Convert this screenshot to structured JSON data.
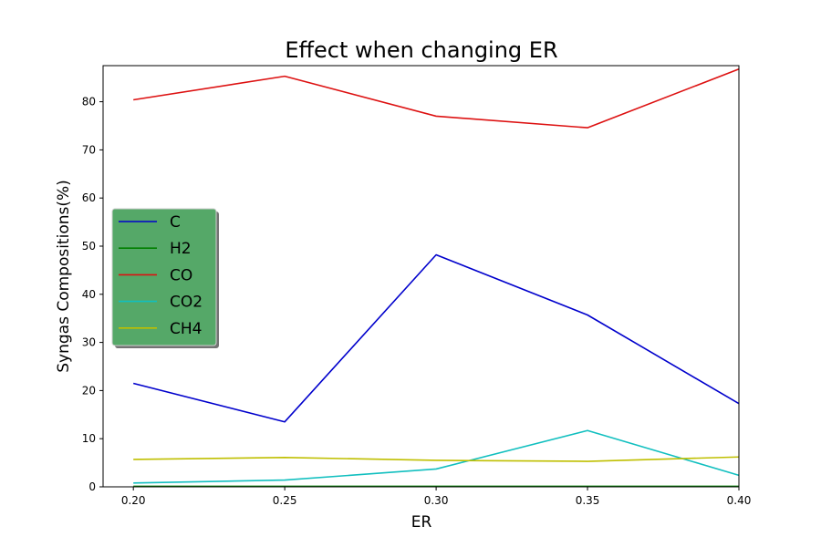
{
  "chart_data": {
    "type": "line",
    "title": "Effect when changing ER",
    "xlabel": "ER",
    "ylabel": "Syngas Compositions(%)",
    "x": [
      0.2,
      0.25,
      0.3,
      0.35,
      0.4
    ],
    "x_tick_labels": [
      "0.20",
      "0.25",
      "0.30",
      "0.35",
      "0.40"
    ],
    "xlim": [
      0.19,
      0.4
    ],
    "y_ticks": [
      0,
      10,
      20,
      30,
      40,
      50,
      60,
      70,
      80
    ],
    "y_tick_labels": [
      "0",
      "10",
      "20",
      "30",
      "40",
      "50",
      "60",
      "70",
      "80"
    ],
    "ylim": [
      0,
      87.5
    ],
    "grid": false,
    "legend_position": "center-left",
    "legend_background": "#55a868",
    "series": [
      {
        "name": "C",
        "color": "#0000cc",
        "values": [
          21.5,
          13.5,
          48.2,
          35.7,
          17.3
        ]
      },
      {
        "name": "H2",
        "color": "#008000",
        "values": [
          0.1,
          0.1,
          0.1,
          0.1,
          0.1
        ]
      },
      {
        "name": "CO",
        "color": "#dd1111",
        "values": [
          80.4,
          85.3,
          77.0,
          74.6,
          86.8
        ]
      },
      {
        "name": "CO2",
        "color": "#11bfbf",
        "values": [
          0.8,
          1.4,
          3.7,
          11.7,
          2.4
        ]
      },
      {
        "name": "CH4",
        "color": "#bfbf00",
        "values": [
          5.7,
          6.1,
          5.5,
          5.3,
          6.2
        ]
      }
    ]
  }
}
